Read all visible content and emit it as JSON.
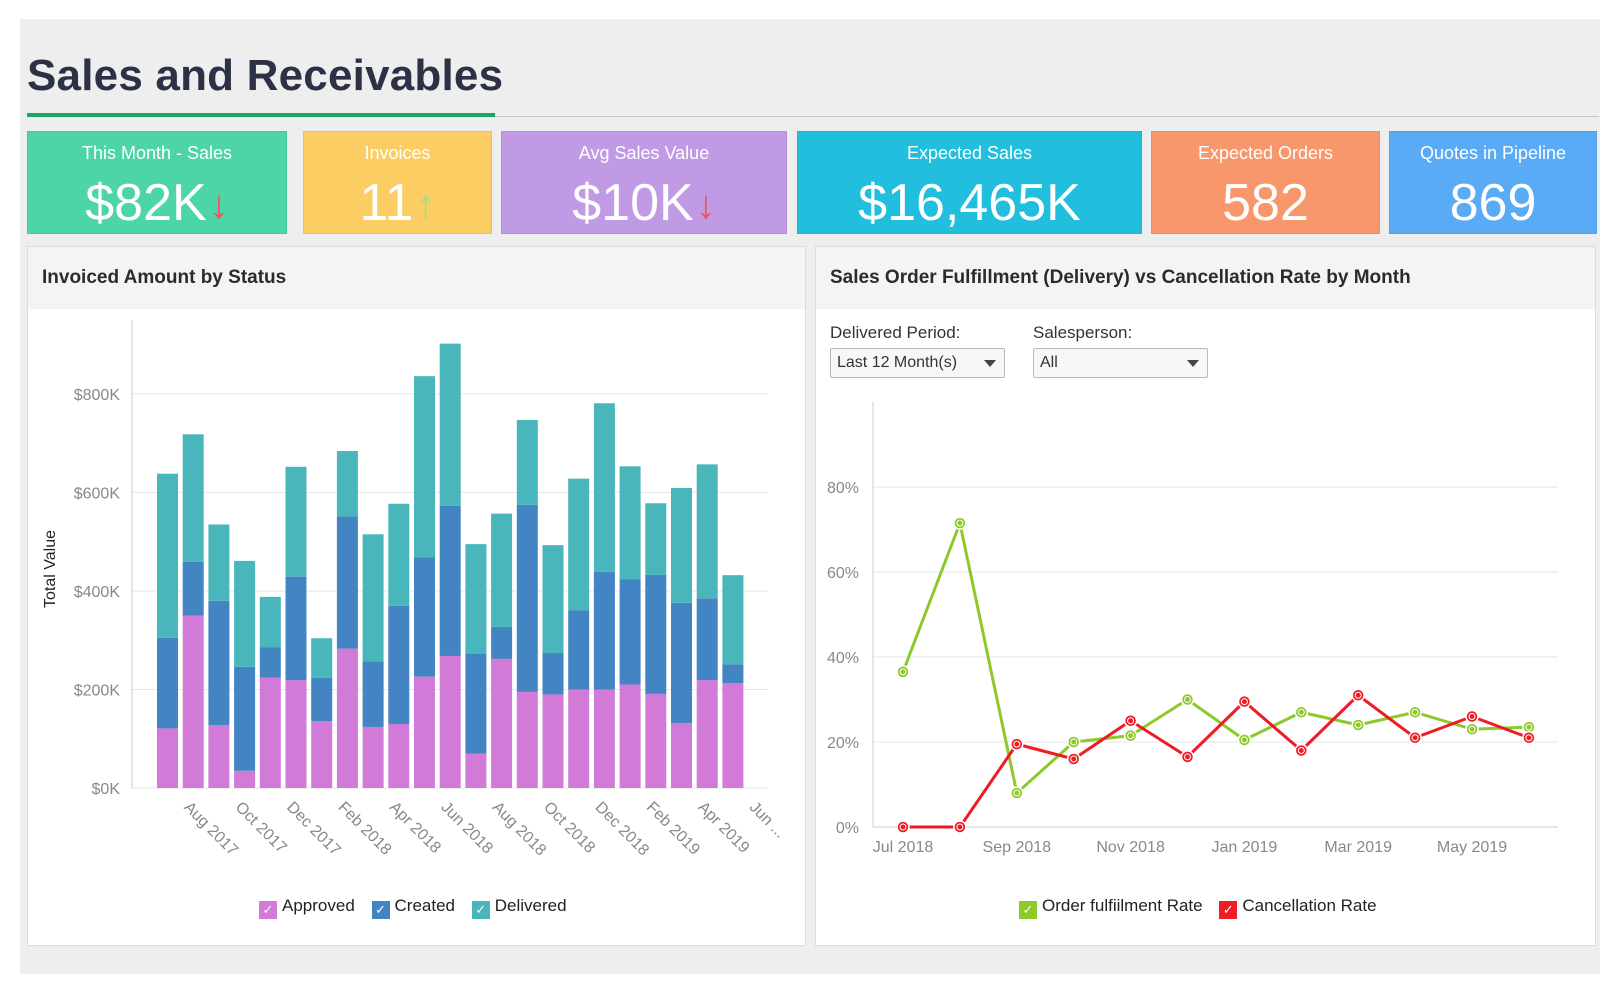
{
  "page": {
    "title": "Sales and Receivables"
  },
  "kpis": [
    {
      "label": "This Month - Sales",
      "value": "$82K",
      "trend": "down",
      "arrow": "↓",
      "arrow_color": "#f0555a",
      "color": "#4dd4a9"
    },
    {
      "label": "Invoices",
      "value": "11",
      "trend": "up",
      "arrow": "↑",
      "arrow_color": "#a3df88",
      "color": "#fccd63"
    },
    {
      "label": "Avg Sales Value",
      "value": "$10K",
      "trend": "down",
      "arrow": "↓",
      "arrow_color": "#f0555a",
      "color": "#c19ae6"
    },
    {
      "label": "Expected Sales",
      "value": "$16,465K",
      "color": "#22bede"
    },
    {
      "label": "Expected Orders",
      "value": "582",
      "color": "#f9976c"
    },
    {
      "label": "Quotes in Pipeline",
      "value": "869",
      "color": "#5aabf5"
    }
  ],
  "left_panel": {
    "title": "Invoiced Amount by Status",
    "legend": [
      {
        "label": "Approved",
        "color": "#d27ad8",
        "check": "✓"
      },
      {
        "label": "Created",
        "color": "#4384c2",
        "check": "✓"
      },
      {
        "label": "Delivered",
        "color": "#48b6bb",
        "check": "✓"
      }
    ]
  },
  "right_panel": {
    "title": "Sales Order Fulfillment (Delivery) vs Cancellation Rate by Month",
    "filters": {
      "period_label": "Delivered Period:",
      "period_value": "Last 12 Month(s)",
      "salesperson_label": "Salesperson:",
      "salesperson_value": "All"
    },
    "legend": [
      {
        "label": "Order fulfiilment Rate",
        "color": "#8ec92b",
        "check": "✓"
      },
      {
        "label": "Cancellation Rate",
        "color": "#ee1c25",
        "check": "✓"
      }
    ]
  },
  "chart_data": [
    {
      "type": "bar",
      "stacked": true,
      "title": "Invoiced Amount by Status",
      "ylabel": "Total Value",
      "xlabel": "",
      "ylim": [
        0,
        950
      ],
      "yticks": [
        0,
        200,
        400,
        600,
        800
      ],
      "ytick_labels": [
        "$0K",
        "$200K",
        "$400K",
        "$600K",
        "$800K"
      ],
      "tick_labels": [
        "Aug 2017",
        "Oct 2017",
        "Dec 2017",
        "Feb 2018",
        "Apr 2018",
        "Jun 2018",
        "Aug 2018",
        "Oct 2018",
        "Dec 2018",
        "Feb 2019",
        "Apr 2019",
        "Jun ..."
      ],
      "categories": [
        "Jul 2017",
        "Aug 2017",
        "Sep 2017",
        "Oct 2017",
        "Nov 2017",
        "Dec 2017",
        "Jan 2018",
        "Feb 2018",
        "Mar 2018",
        "Apr 2018",
        "May 2018",
        "Jun 2018",
        "Jul 2018",
        "Aug 2018",
        "Sep 2018",
        "Oct 2018",
        "Nov 2018",
        "Dec 2018",
        "Jan 2019",
        "Feb 2019",
        "Mar 2019",
        "Apr 2019",
        "May 2019",
        "Jun 2019"
      ],
      "series": [
        {
          "name": "Approved",
          "color": "#d27ad8",
          "values": [
            121,
            350,
            128,
            35,
            224,
            219,
            136,
            283,
            124,
            130,
            226,
            268,
            70,
            262,
            195,
            190,
            200,
            200,
            210,
            191,
            132,
            219,
            213,
            0
          ]
        },
        {
          "name": "Created",
          "color": "#4384c2",
          "values": [
            184,
            109,
            252,
            211,
            62,
            210,
            88,
            268,
            133,
            240,
            242,
            305,
            202,
            65,
            380,
            84,
            161,
            239,
            214,
            242,
            244,
            166,
            38,
            0
          ]
        },
        {
          "name": "Delivered",
          "color": "#48b6bb",
          "values": [
            333,
            259,
            155,
            215,
            102,
            223,
            80,
            133,
            258,
            207,
            368,
            329,
            223,
            230,
            172,
            219,
            267,
            342,
            229,
            145,
            233,
            272,
            181,
            0
          ]
        }
      ],
      "legend": "bottom"
    },
    {
      "type": "line",
      "title": "Sales Order Fulfillment (Delivery) vs Cancellation Rate by Month",
      "x": [
        "Jul 2018",
        "Aug 2018",
        "Sep 2018",
        "Oct 2018",
        "Nov 2018",
        "Dec 2018",
        "Jan 2019",
        "Feb 2019",
        "Mar 2019",
        "Apr 2019",
        "May 2019",
        "Jun 2019"
      ],
      "tick_labels": [
        "Jul 2018",
        "Sep 2018",
        "Nov 2018",
        "Jan 2019",
        "Mar 2019",
        "May 2019"
      ],
      "ylim": [
        0,
        100
      ],
      "yticks": [
        0,
        20,
        40,
        60,
        80
      ],
      "ytick_labels": [
        "0%",
        "20%",
        "40%",
        "60%",
        "80%"
      ],
      "series": [
        {
          "name": "Order fulfiilment Rate",
          "color": "#8ec92b",
          "values": [
            36.5,
            71.5,
            8,
            20,
            21.5,
            30,
            20.5,
            27,
            24,
            27,
            23,
            23.5
          ]
        },
        {
          "name": "Cancellation Rate",
          "color": "#ee1c25",
          "values": [
            0,
            0,
            19.5,
            16,
            25,
            16.5,
            29.5,
            18,
            31,
            21,
            26,
            21
          ]
        }
      ],
      "legend": "bottom"
    }
  ]
}
